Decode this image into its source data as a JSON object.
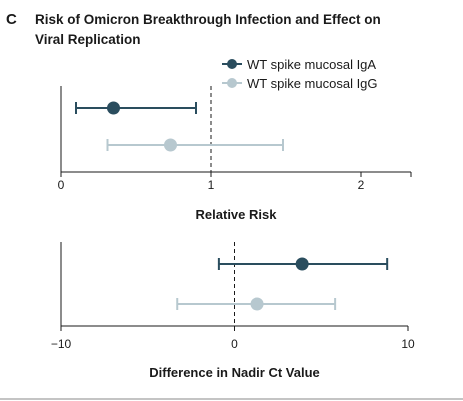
{
  "panel_letter": "C",
  "title_lines": [
    "Risk of Omicron Breakthrough Infection and Effect on",
    "Viral Replication"
  ],
  "legend": [
    {
      "label": "WT spike mucosal IgA",
      "color": "#2a4d5e"
    },
    {
      "label": "WT spike mucosal IgG",
      "color": "#b7c8cf"
    }
  ],
  "chart_data": [
    {
      "type": "forest",
      "xlabel": "Relative Risk",
      "xlim": [
        0,
        2.3333
      ],
      "ticks": [
        0,
        1,
        2
      ],
      "tick_labels": [
        "0",
        "1",
        "2"
      ],
      "reference_line": 1,
      "series": [
        {
          "name": "WT spike mucosal IgA",
          "estimate": 0.35,
          "lower": 0.1,
          "upper": 0.9,
          "color": "#2a4d5e"
        },
        {
          "name": "WT spike mucosal IgG",
          "estimate": 0.73,
          "lower": 0.31,
          "upper": 1.48,
          "color": "#b7c8cf"
        }
      ]
    },
    {
      "type": "forest",
      "xlabel": "Difference in Nadir Ct Value",
      "xlim": [
        -10,
        10
      ],
      "ticks": [
        -10,
        0,
        10
      ],
      "tick_labels": [
        "−10",
        "0",
        "10"
      ],
      "reference_line": 0,
      "series": [
        {
          "name": "WT spike mucosal IgA",
          "estimate": 3.9,
          "lower": -0.9,
          "upper": 8.8,
          "color": "#2a4d5e"
        },
        {
          "name": "WT spike mucosal IgG",
          "estimate": 1.3,
          "lower": -3.3,
          "upper": 5.8,
          "color": "#b7c8cf"
        }
      ]
    }
  ]
}
